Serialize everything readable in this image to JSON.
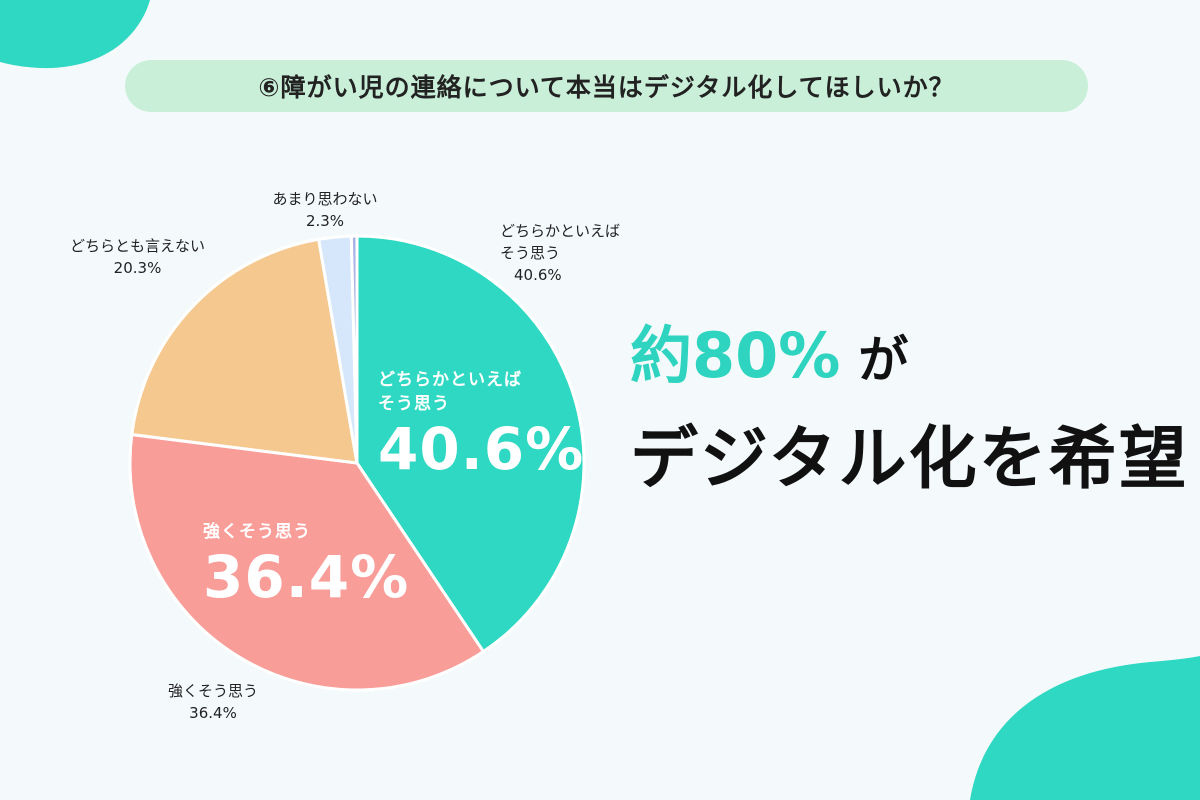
{
  "title": "⑥障がい児の連絡について本当はデジタル化してほしいか？",
  "headline": {
    "accent": "約80%",
    "particle": "が",
    "line2": "デジタル化を希望"
  },
  "colors": {
    "teal": "#2ed8c2",
    "salmon": "#f99d99",
    "peach": "#f5c88f",
    "light_blue": "#d6e7fb",
    "lavender": "#a9b3e6",
    "title_bg": "#c9efd9",
    "accent_text": "#2ed4bf"
  },
  "chart_data": {
    "type": "pie",
    "slices": [
      {
        "label": "どちらかといえばそう思う",
        "value": 40.6,
        "color": "#2ed8c2"
      },
      {
        "label": "強くそう思う",
        "value": 36.4,
        "color": "#f99d99"
      },
      {
        "label": "どちらとも言えない",
        "value": 20.3,
        "color": "#f5c88f"
      },
      {
        "label": "あまり思わない",
        "value": 2.3,
        "color": "#d6e7fb"
      },
      {
        "label": "",
        "value": 0.4,
        "color": "#a9b3e6"
      }
    ],
    "outside_labels": [
      {
        "line1": "あまり思わない",
        "line2": "2.3%"
      },
      {
        "line1": "どちらとも言えない",
        "line2": "20.3%"
      },
      {
        "line1": "どちらかといえば",
        "line2": "そう思う",
        "line3": "40.6%"
      },
      {
        "line1": "強くそう思う",
        "line2": "36.4%"
      }
    ],
    "inside_labels": [
      {
        "line1": "どちらかといえば",
        "line2": "そう思う",
        "value": "40.6%"
      },
      {
        "line1": "強くそう思う",
        "value": "36.4%"
      }
    ]
  }
}
